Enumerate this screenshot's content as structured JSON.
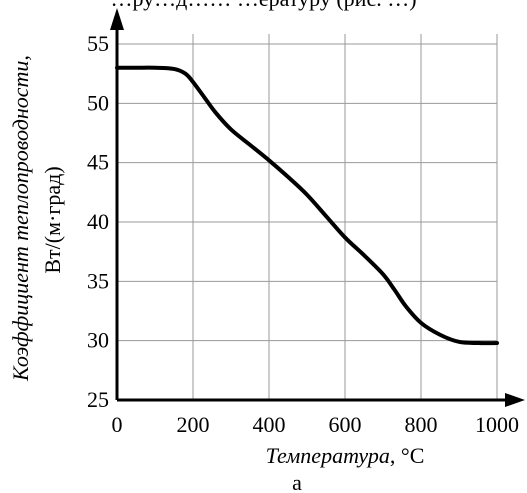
{
  "header_fragment": "…ру…д…… …ературу (рис. …)",
  "chart_data": {
    "type": "line",
    "x": [
      0,
      50,
      100,
      150,
      180,
      200,
      230,
      260,
      300,
      350,
      400,
      450,
      500,
      550,
      600,
      650,
      700,
      730,
      760,
      800,
      850,
      900,
      950,
      1000
    ],
    "series": [
      {
        "values": [
          53.0,
          53.0,
          53.0,
          52.9,
          52.5,
          51.8,
          50.5,
          49.2,
          47.8,
          46.5,
          45.2,
          43.8,
          42.3,
          40.5,
          38.7,
          37.2,
          35.6,
          34.3,
          32.9,
          31.5,
          30.5,
          29.9,
          29.8,
          29.8
        ]
      }
    ],
    "xlabel_italic": "Температура",
    "xlabel_unit": ", °C",
    "ylabel_line1": "Коэффициент теплопроводности,",
    "ylabel_line2": "Вт/(м·град)",
    "xlim": [
      0,
      1000
    ],
    "ylim": [
      25,
      55
    ],
    "xticks": [
      "0",
      "200",
      "400",
      "600",
      "800",
      "1000"
    ],
    "yticks": [
      "25",
      "30",
      "35",
      "40",
      "45",
      "50",
      "55"
    ],
    "grid": true,
    "caption": "а",
    "line_color": "#000000"
  }
}
